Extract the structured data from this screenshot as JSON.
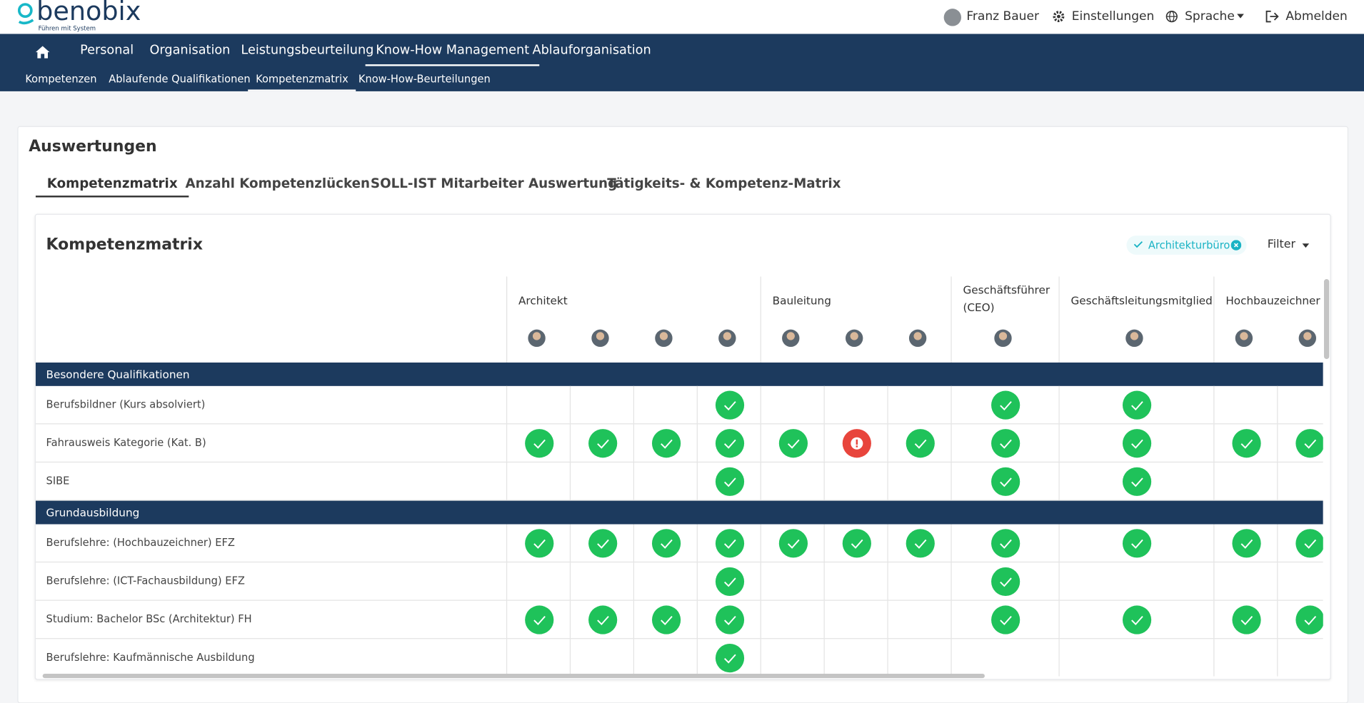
{
  "header": {
    "logo": "benobix",
    "tagline": "Führen mit System",
    "user": "Franz Bauer",
    "settings": "Einstellungen",
    "language": "Sprache",
    "logout": "Abmelden"
  },
  "nav": {
    "main": [
      "Personal",
      "Organisation",
      "Leistungsbeurteilung",
      "Know-How Management",
      "Ablauforganisation"
    ],
    "active_main": 3,
    "sub": [
      "Kompetenzen",
      "Ablaufende Qualifikationen",
      "Kompetenzmatrix",
      "Know-How-Beurteilungen"
    ],
    "active_sub": 2
  },
  "page": {
    "title": "Auswertungen",
    "tabs": [
      "Kompetenzmatrix",
      "Anzahl Kompetenzlücken",
      "SOLL-IST Mitarbeiter Auswertung",
      "Tätigkeits- & Kompetenz-Matrix"
    ],
    "active_tab": 0
  },
  "matrix": {
    "title": "Kompetenzmatrix",
    "filter_chip": "Architekturbüro",
    "filter": "Filter",
    "roles": [
      {
        "name": "Architekt",
        "employees": 4
      },
      {
        "name": "Bauleitung",
        "employees": 3
      },
      {
        "name": "Geschäftsführer (CEO)",
        "employees": 1
      },
      {
        "name": "Geschäftsleitungsmitglied",
        "employees": 1
      },
      {
        "name": "Hochbauzeichner",
        "employees": 2
      }
    ],
    "sections": [
      {
        "name": "Besondere Qualifikationen",
        "rows": [
          {
            "label": "Berufsbildner (Kurs absolviert)",
            "cells": [
              null,
              null,
              null,
              "ok",
              null,
              null,
              null,
              "ok",
              "ok",
              null,
              null
            ]
          },
          {
            "label": "Fahrausweis Kategorie (Kat. B)",
            "cells": [
              "ok",
              "ok",
              "ok",
              "ok",
              "ok",
              "warn",
              "ok",
              "ok",
              "ok",
              "ok",
              "ok"
            ]
          },
          {
            "label": "SIBE",
            "cells": [
              null,
              null,
              null,
              "ok",
              null,
              null,
              null,
              "ok",
              "ok",
              null,
              null
            ]
          }
        ]
      },
      {
        "name": "Grundausbildung",
        "rows": [
          {
            "label": "Berufslehre: (Hochbauzeichner) EFZ",
            "cells": [
              "ok",
              "ok",
              "ok",
              "ok",
              "ok",
              "ok",
              "ok",
              "ok",
              "ok",
              "ok",
              "ok"
            ]
          },
          {
            "label": "Berufslehre: (ICT-Fachausbildung) EFZ",
            "cells": [
              null,
              null,
              null,
              "ok",
              null,
              null,
              null,
              "ok",
              null,
              null,
              null
            ]
          },
          {
            "label": "Studium: Bachelor BSc (Architektur) FH",
            "cells": [
              "ok",
              "ok",
              "ok",
              "ok",
              null,
              null,
              null,
              "ok",
              "ok",
              "ok",
              "ok"
            ]
          },
          {
            "label": "Berufslehre: Kaufmännische Ausbildung",
            "cells": [
              null,
              null,
              null,
              "ok",
              null,
              null,
              null,
              null,
              null,
              null,
              null
            ]
          }
        ]
      }
    ]
  }
}
